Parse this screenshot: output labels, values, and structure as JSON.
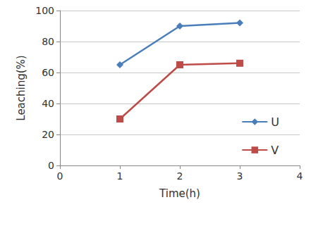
{
  "chart_data": {
    "type": "line",
    "x_label": "Time(h)",
    "y_label": "Leaching(%)",
    "x": [
      1,
      2,
      3
    ],
    "series": [
      {
        "name": "U",
        "color": "#4a7ebb",
        "marker": "diamond",
        "values": [
          65,
          90,
          92
        ]
      },
      {
        "name": "V",
        "color": "#be4b48",
        "marker": "square",
        "values": [
          30,
          65,
          66
        ]
      }
    ],
    "xlim": [
      0,
      4
    ],
    "xticks": [
      0,
      1,
      2,
      3,
      4
    ],
    "ylim": [
      0,
      100
    ],
    "yticks": [
      0,
      20,
      40,
      60,
      80,
      100
    ],
    "grid": true,
    "legend": "lower right"
  }
}
